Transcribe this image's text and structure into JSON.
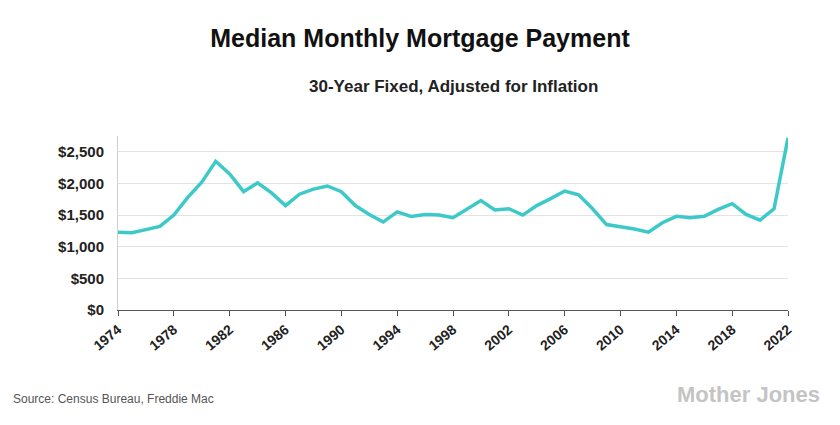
{
  "chart_data": {
    "type": "line",
    "title": "Median Monthly Mortgage Payment",
    "subtitle": "30-Year Fixed, Adjusted for Inflation",
    "annotations": [
      "Source: Census Bureau, Freddie Mac",
      "Mother Jones"
    ],
    "x": [
      1974,
      1975,
      1976,
      1977,
      1978,
      1979,
      1980,
      1981,
      1982,
      1983,
      1984,
      1985,
      1986,
      1987,
      1988,
      1989,
      1990,
      1991,
      1992,
      1993,
      1994,
      1995,
      1996,
      1997,
      1998,
      1999,
      2000,
      2001,
      2002,
      2003,
      2004,
      2005,
      2006,
      2007,
      2008,
      2009,
      2010,
      2011,
      2012,
      2013,
      2014,
      2015,
      2016,
      2017,
      2018,
      2019,
      2020,
      2021,
      2022
    ],
    "values": [
      1230,
      1220,
      1270,
      1320,
      1500,
      1780,
      2020,
      2350,
      2150,
      1870,
      2010,
      1850,
      1650,
      1830,
      1910,
      1960,
      1870,
      1650,
      1510,
      1390,
      1550,
      1480,
      1510,
      1500,
      1460,
      1600,
      1730,
      1580,
      1600,
      1500,
      1650,
      1760,
      1880,
      1820,
      1600,
      1350,
      1320,
      1280,
      1230,
      1380,
      1480,
      1460,
      1480,
      1590,
      1680,
      1510,
      1420,
      1600,
      2720
    ],
    "color": "#3ec9c9",
    "xlim": [
      1974,
      2022
    ],
    "xticks": [
      1974,
      1978,
      1982,
      1986,
      1990,
      1994,
      1998,
      2002,
      2006,
      2010,
      2014,
      2018,
      2022
    ],
    "ylim": [
      0,
      2750
    ],
    "yticks": [
      {
        "value": 0,
        "label": "$0"
      },
      {
        "value": 500,
        "label": "$500"
      },
      {
        "value": 1000,
        "label": "$1,000"
      },
      {
        "value": 1500,
        "label": "$1,500"
      },
      {
        "value": 2000,
        "label": "$2,000"
      },
      {
        "value": 2500,
        "label": "$2,500"
      }
    ],
    "grid": true
  }
}
